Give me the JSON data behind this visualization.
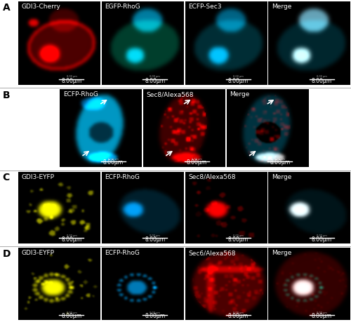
{
  "figure_bg": "#ffffff",
  "panel_bg": "#000000",
  "row_labels": [
    "A",
    "B",
    "C",
    "D"
  ],
  "row_label_fontsize": 10,
  "row_label_color": "#000000",
  "label_fontsize": 6.5,
  "label_color": "#ffffff",
  "scalebar_text": "8.00μm",
  "scalebar_fontsize": 5.5,
  "scalebar_color": "#ffffff",
  "divider_color": "#aaaaaa",
  "row_A": {
    "titles": [
      "GDI3-Cherry",
      "EGFP-RhoG",
      "ECFP-Sec3",
      "Merge"
    ],
    "n": 4
  },
  "row_B": {
    "titles": [
      "ECFP-RhoG",
      "Sec8/Alexa568",
      "Merge"
    ],
    "n": 3
  },
  "row_C": {
    "titles": [
      "GDI3-EYFP",
      "ECFP-RhoG",
      "Sec8/Alexa568",
      "Merge"
    ],
    "n": 4
  },
  "row_D": {
    "titles": [
      "GDI3-EYFP",
      "ECFP-RhoG",
      "Sec6/Alexa568",
      "Merge"
    ],
    "n": 4
  }
}
